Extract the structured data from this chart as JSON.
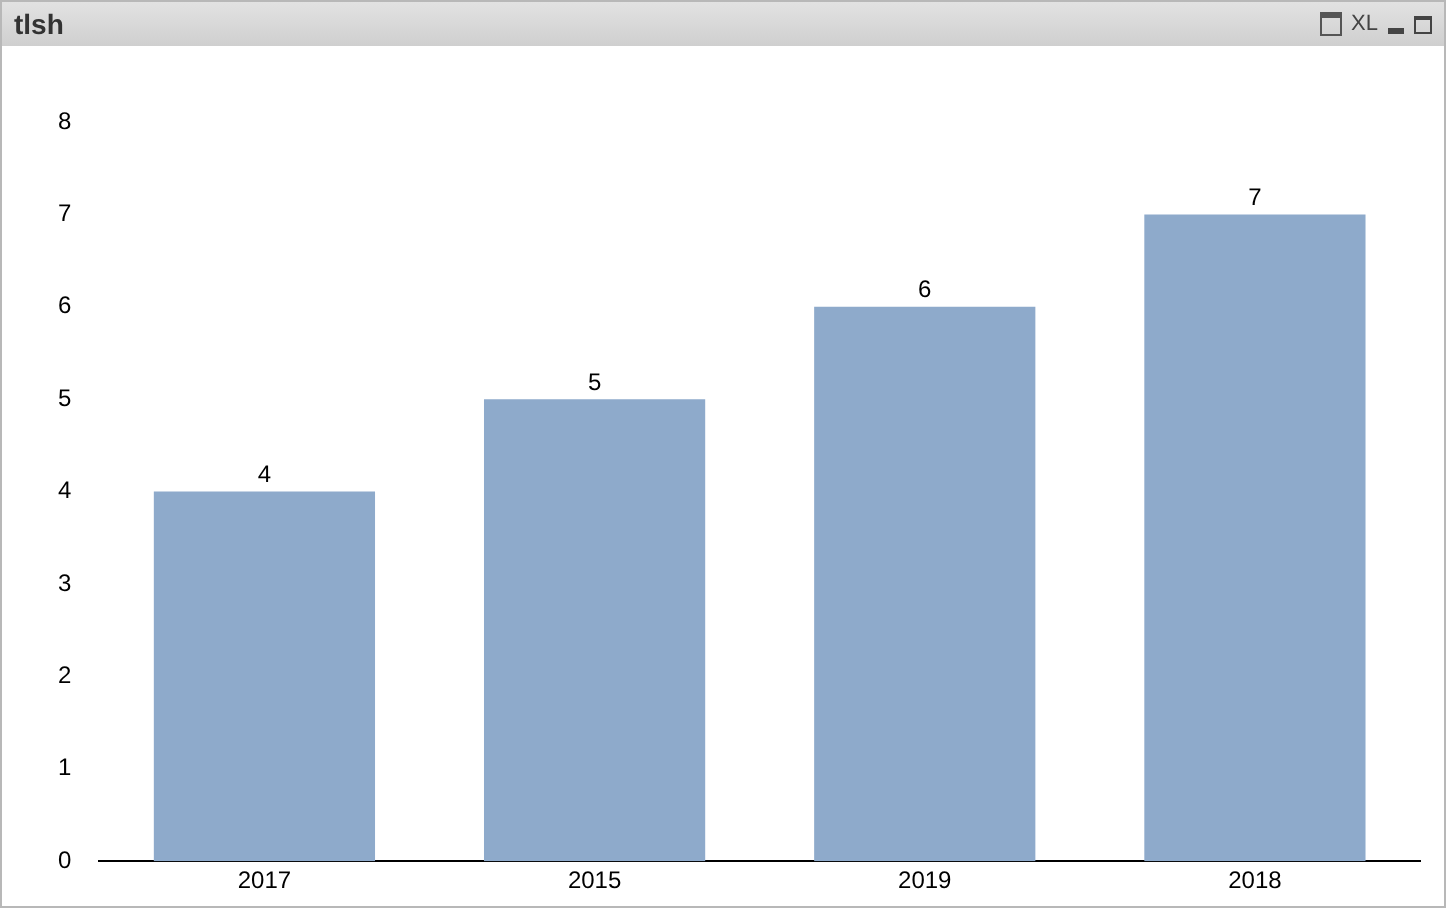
{
  "chart_data": {
    "type": "bar",
    "title": "tlsh",
    "categories": [
      "2017",
      "2015",
      "2019",
      "2018"
    ],
    "values": [
      4,
      5,
      6,
      7
    ],
    "color": "#8eaacb",
    "ylim": [
      0,
      8
    ],
    "yticks": [
      0,
      1,
      2,
      3,
      4,
      5,
      6,
      7,
      8
    ],
    "grid": false,
    "legend": false,
    "data_labels": true,
    "annotations": [
      "XL"
    ]
  }
}
